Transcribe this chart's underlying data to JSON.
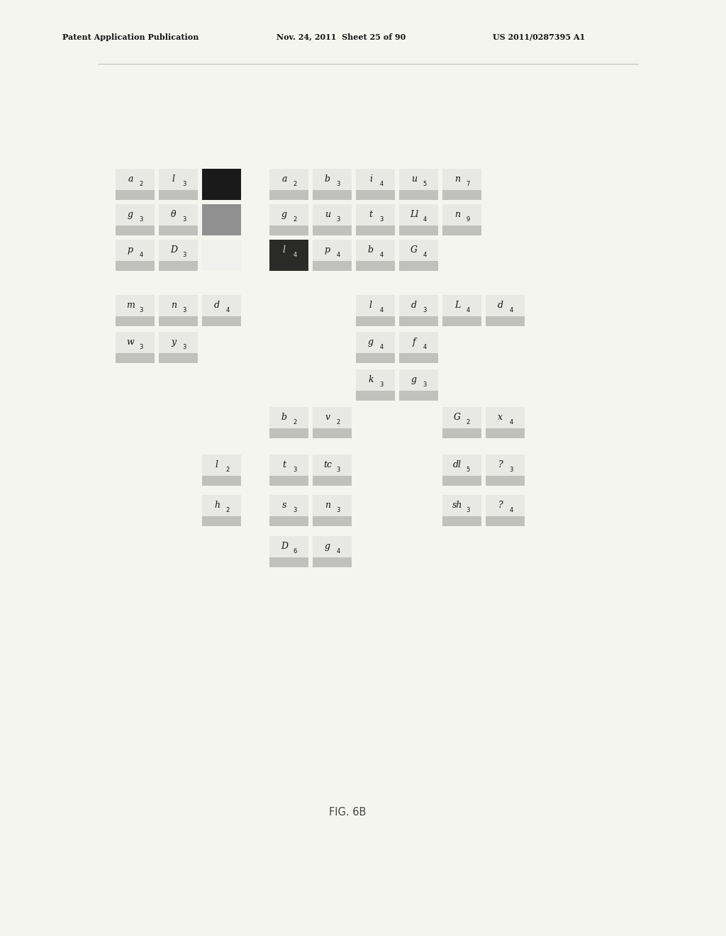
{
  "title_left": "Patent Application Publication",
  "title_mid": "Nov. 24, 2011  Sheet 25 of 90",
  "title_right": "US 2011/0287395 A1",
  "fig_label": "FIG. 6B",
  "bg_color": "#f5f5f0",
  "cell_bar_color": "#c0c0bc",
  "cell_img_color": "#e8e8e4",
  "dark_box_color": "#1a1a1a",
  "gray_box_color": "#909090",
  "white_box_color": "#f0f0ee",
  "dark_card_color": "#2a2a28",
  "header_line_color": "#bbbbbb",
  "text_color": "#111111",
  "letter_color": "#111111"
}
